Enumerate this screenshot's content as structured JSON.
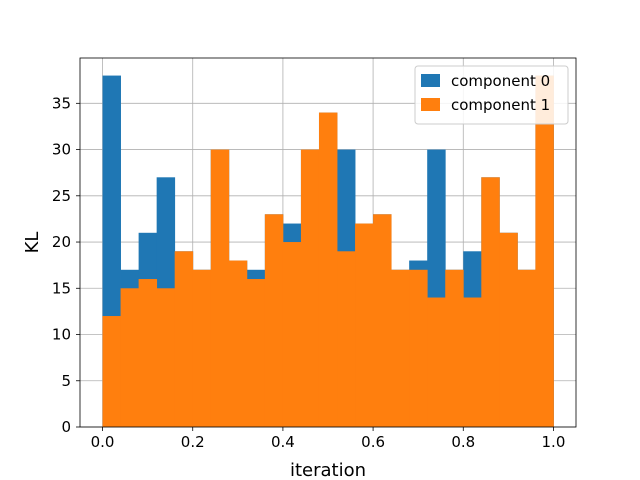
{
  "chart_data": {
    "type": "bar",
    "subtype": "histogram",
    "title": "",
    "xlabel": "iteration",
    "ylabel": "KL",
    "xlim": [
      -0.05,
      1.05
    ],
    "ylim": [
      0,
      39.9
    ],
    "x_ticks": [
      0.0,
      0.2,
      0.4,
      0.6,
      0.8,
      1.0
    ],
    "x_tick_labels": [
      "0.0",
      "0.2",
      "0.4",
      "0.6",
      "0.8",
      "1.0"
    ],
    "y_ticks": [
      0,
      5,
      10,
      15,
      20,
      25,
      30,
      35
    ],
    "y_tick_labels": [
      "0",
      "5",
      "10",
      "15",
      "20",
      "25",
      "30",
      "35"
    ],
    "grid": true,
    "legend_position": "top-right",
    "bin_edges": [
      0.0,
      0.04,
      0.08,
      0.12,
      0.16,
      0.2,
      0.24,
      0.28,
      0.32,
      0.36,
      0.4,
      0.44,
      0.48,
      0.52,
      0.56,
      0.6,
      0.64,
      0.68,
      0.72,
      0.76,
      0.8,
      0.84,
      0.88,
      0.92,
      0.96,
      1.0
    ],
    "series": [
      {
        "name": "component 0",
        "color": "#1f77b4",
        "values": [
          38,
          17,
          21,
          27,
          19,
          17,
          30,
          18,
          17,
          23,
          22,
          30,
          34,
          30,
          22,
          23,
          17,
          18,
          30,
          17,
          19,
          27,
          21,
          17,
          38
        ]
      },
      {
        "name": "component 1",
        "color": "#ff7f0e",
        "values": [
          12,
          15,
          16,
          15,
          19,
          17,
          30,
          18,
          16,
          23,
          20,
          30,
          34,
          19,
          22,
          23,
          17,
          17,
          14,
          17,
          14,
          27,
          21,
          17,
          38
        ]
      }
    ]
  }
}
